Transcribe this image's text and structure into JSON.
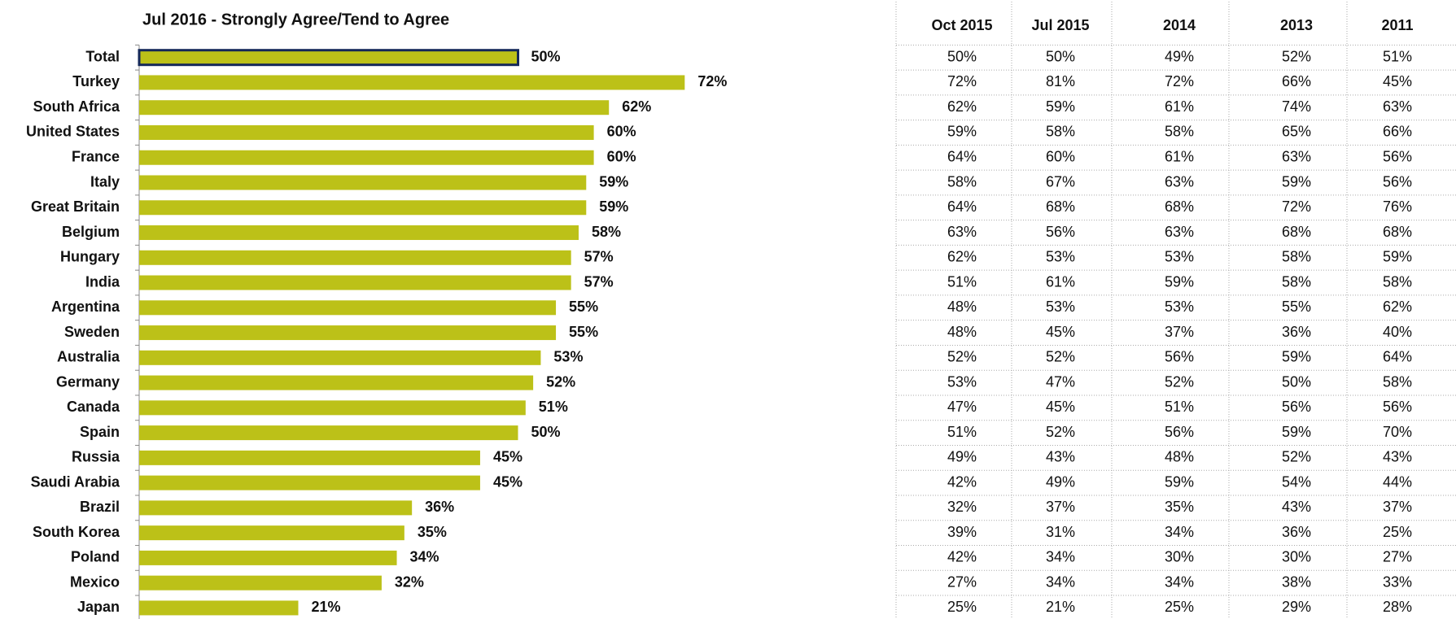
{
  "chart_data": {
    "type": "bar",
    "orientation": "horizontal",
    "title": "Jul 2016 - Strongly Agree/Tend to Agree",
    "categories": [
      "Total",
      "Turkey",
      "South Africa",
      "United States",
      "France",
      "Italy",
      "Great Britain",
      "Belgium",
      "Hungary",
      "India",
      "Argentina",
      "Sweden",
      "Australia",
      "Germany",
      "Canada",
      "Spain",
      "Russia",
      "Saudi Arabia",
      "Brazil",
      "South Korea",
      "Poland",
      "Mexico",
      "Japan"
    ],
    "values": [
      50,
      72,
      62,
      60,
      60,
      59,
      59,
      58,
      57,
      57,
      55,
      55,
      53,
      52,
      51,
      50,
      45,
      45,
      36,
      35,
      34,
      32,
      21
    ],
    "value_labels": [
      "50%",
      "72%",
      "62%",
      "60%",
      "60%",
      "59%",
      "59%",
      "58%",
      "57%",
      "57%",
      "55%",
      "55%",
      "53%",
      "52%",
      "51%",
      "50%",
      "45%",
      "45%",
      "36%",
      "35%",
      "34%",
      "32%",
      "21%"
    ],
    "color": "#bcc118",
    "edge_color": "#14285a"
  },
  "table": {
    "header": [
      "Oct 2015",
      "Jul 2015",
      "2014",
      "2013",
      "2011"
    ],
    "rows": [
      [
        "50%",
        "50%",
        "49%",
        "52%",
        "51%"
      ],
      [
        "72%",
        "81%",
        "72%",
        "66%",
        "45%"
      ],
      [
        "62%",
        "59%",
        "61%",
        "74%",
        "63%"
      ],
      [
        "59%",
        "58%",
        "58%",
        "65%",
        "66%"
      ],
      [
        "64%",
        "60%",
        "61%",
        "63%",
        "56%"
      ],
      [
        "58%",
        "67%",
        "63%",
        "59%",
        "56%"
      ],
      [
        "64%",
        "68%",
        "68%",
        "72%",
        "76%"
      ],
      [
        "63%",
        "56%",
        "63%",
        "68%",
        "68%"
      ],
      [
        "62%",
        "53%",
        "53%",
        "58%",
        "59%"
      ],
      [
        "51%",
        "61%",
        "59%",
        "58%",
        "58%"
      ],
      [
        "48%",
        "53%",
        "53%",
        "55%",
        "62%"
      ],
      [
        "48%",
        "45%",
        "37%",
        "36%",
        "40%"
      ],
      [
        "52%",
        "52%",
        "56%",
        "59%",
        "64%"
      ],
      [
        "53%",
        "47%",
        "52%",
        "50%",
        "58%"
      ],
      [
        "47%",
        "45%",
        "51%",
        "56%",
        "56%"
      ],
      [
        "51%",
        "52%",
        "56%",
        "59%",
        "70%"
      ],
      [
        "49%",
        "43%",
        "48%",
        "52%",
        "43%"
      ],
      [
        "42%",
        "49%",
        "59%",
        "54%",
        "44%"
      ],
      [
        "32%",
        "37%",
        "35%",
        "43%",
        "37%"
      ],
      [
        "39%",
        "31%",
        "34%",
        "36%",
        "25%"
      ],
      [
        "42%",
        "34%",
        "30%",
        "30%",
        "27%"
      ],
      [
        "27%",
        "34%",
        "34%",
        "38%",
        "33%"
      ],
      [
        "25%",
        "21%",
        "25%",
        "29%",
        "28%"
      ]
    ]
  }
}
